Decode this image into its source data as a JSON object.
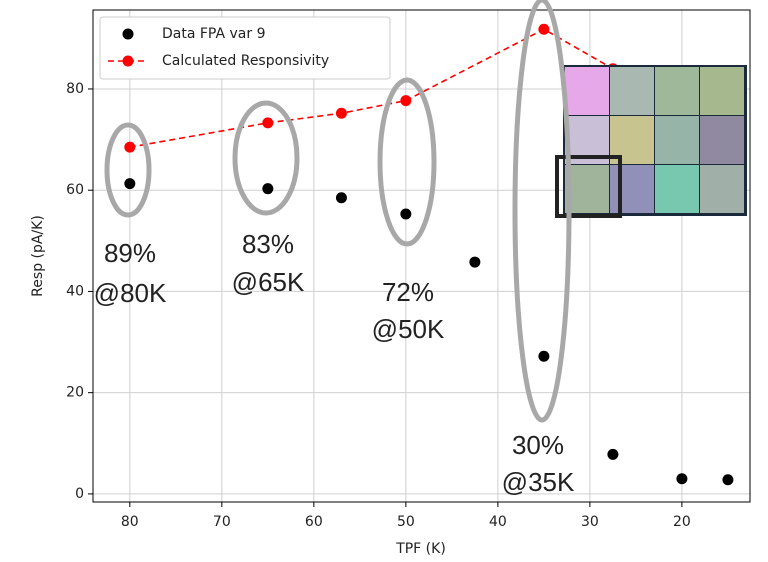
{
  "chart_data": {
    "type": "scatter",
    "xlabel": "TPF (K)",
    "ylabel": "Resp (pA/K)",
    "xlim": [
      84,
      12.6
    ],
    "ylim": [
      -1.6,
      95.6
    ],
    "xticks": [
      80,
      70,
      60,
      50,
      40,
      30,
      20
    ],
    "yticks": [
      0,
      20,
      40,
      60,
      80
    ],
    "grid": true,
    "legend": "upper left",
    "series": [
      {
        "name": "Data FPA var 9",
        "color": "#000000",
        "style": "markers",
        "x": [
          80,
          65,
          57,
          50,
          42.5,
          35,
          27.5,
          20,
          15
        ],
        "values": [
          61.3,
          60.3,
          58.5,
          55.3,
          45.8,
          27.2,
          7.8,
          3.0,
          2.8
        ]
      },
      {
        "name": "Calculated Responsivity",
        "color": "#ff0000",
        "style": "dashed-line-markers",
        "x": [
          80,
          65,
          57,
          50,
          35,
          27.5
        ],
        "values": [
          68.5,
          73.3,
          75.2,
          77.7,
          91.8,
          84
        ]
      }
    ],
    "annotations": [
      {
        "lines": [
          "89%",
          "@80K"
        ]
      },
      {
        "lines": [
          "83%",
          "@65K"
        ]
      },
      {
        "lines": [
          "72%",
          "@50K"
        ]
      },
      {
        "lines": [
          "30%",
          "@35K"
        ]
      }
    ]
  }
}
